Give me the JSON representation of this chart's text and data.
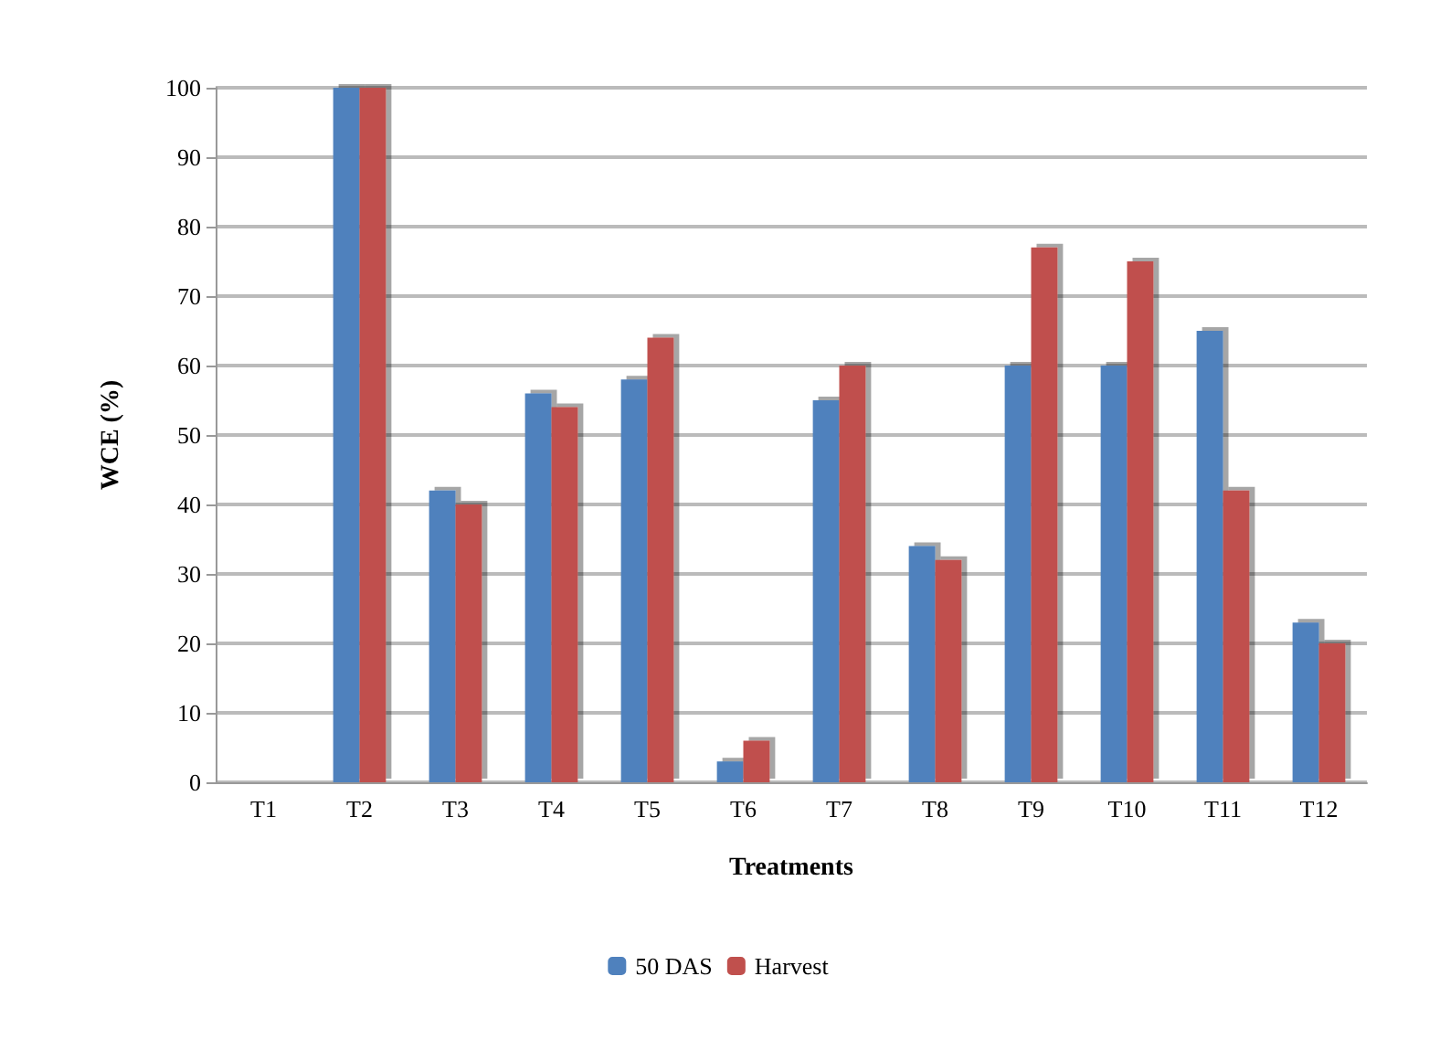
{
  "chart_data": {
    "type": "bar",
    "xlabel": "Treatments",
    "ylabel": "WCE (%)",
    "categories": [
      "T1",
      "T2",
      "T3",
      "T4",
      "T5",
      "T6",
      "T7",
      "T8",
      "T9",
      "T10",
      "T11",
      "T12"
    ],
    "series": [
      {
        "name": "50 DAS",
        "color": "#4f81bd",
        "values": [
          0,
          100,
          42,
          56,
          58,
          3,
          55,
          34,
          60,
          60,
          65,
          23
        ]
      },
      {
        "name": "Harvest",
        "color": "#c0504d",
        "values": [
          0,
          100,
          40,
          54,
          64,
          6,
          60,
          32,
          77,
          75,
          42,
          20
        ]
      }
    ],
    "ylim": [
      0,
      100
    ],
    "yticks": [
      0,
      10,
      20,
      30,
      40,
      50,
      60,
      70,
      80,
      90,
      100
    ],
    "grid": "y",
    "legend": "bottom"
  }
}
